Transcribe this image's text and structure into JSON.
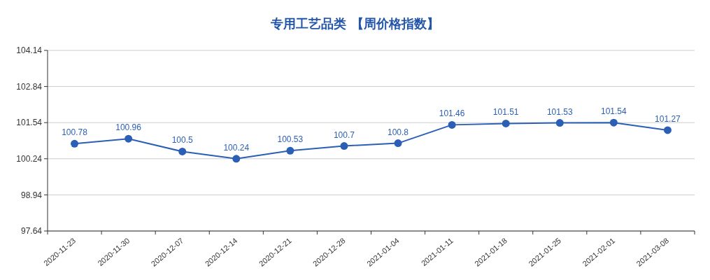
{
  "chart_data": {
    "type": "line",
    "title": "专用工艺品类 【周价格指数】",
    "categories": [
      "2020-11-23",
      "2020-11-30",
      "2020-12-07",
      "2020-12-14",
      "2020-12-21",
      "2020-12-28",
      "2021-01-04",
      "2021-01-11",
      "2021-01-18",
      "2021-01-25",
      "2021-02-01",
      "2021-03-08"
    ],
    "series": [
      {
        "color": "#2b5fb5",
        "values": [
          100.78,
          100.96,
          100.5,
          100.24,
          100.53,
          100.7,
          100.8,
          101.46,
          101.51,
          101.53,
          101.54,
          101.27
        ]
      }
    ],
    "ylim": [
      97.64,
      104.14
    ],
    "yticks": [
      97.64,
      98.94,
      100.24,
      101.54,
      102.84,
      104.14
    ],
    "grid": "y",
    "marker": "circle",
    "line_style": "solid",
    "data_labels": true
  }
}
